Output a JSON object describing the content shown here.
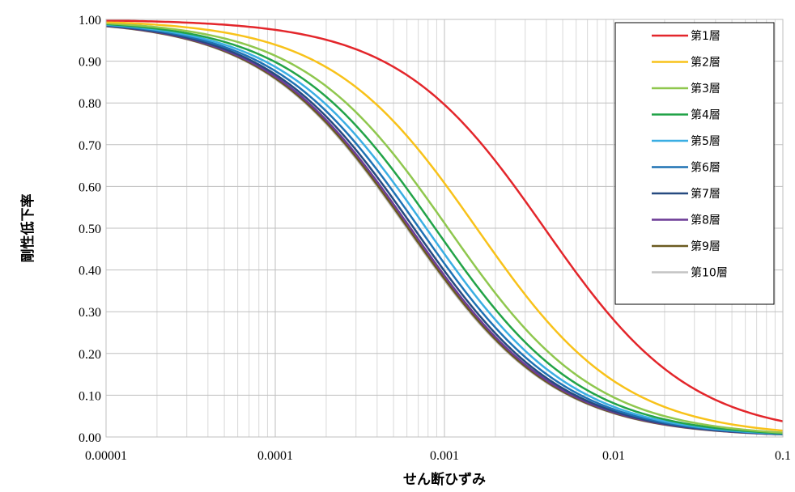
{
  "chart_data": {
    "type": "line",
    "xlabel": "せん断ひずみ",
    "ylabel": "剛性低下率",
    "xscale": "log",
    "xlim": [
      1e-05,
      0.1
    ],
    "ylim": [
      0,
      1.0
    ],
    "x_ticks": [
      "0.00001",
      "0.0001",
      "0.001",
      "0.01",
      "0.1"
    ],
    "y_ticks": [
      "0.00",
      "0.10",
      "0.20",
      "0.30",
      "0.40",
      "0.50",
      "0.60",
      "0.70",
      "0.80",
      "0.90",
      "1.00"
    ],
    "grid": true,
    "legend_position": "top-right",
    "curve_model": "G/G0 = 1 / (1 + gamma / gamma_ref)",
    "series": [
      {
        "name": "第1層",
        "color": "#e3262b",
        "gamma_ref": 0.0039
      },
      {
        "name": "第2層",
        "color": "#f8c21a",
        "gamma_ref": 0.00155
      },
      {
        "name": "第3層",
        "color": "#8fc74e",
        "gamma_ref": 0.00105
      },
      {
        "name": "第4層",
        "color": "#22a348",
        "gamma_ref": 0.00088
      },
      {
        "name": "第5層",
        "color": "#3aaee3",
        "gamma_ref": 0.00078
      },
      {
        "name": "第6層",
        "color": "#1e72b4",
        "gamma_ref": 0.00071
      },
      {
        "name": "第7層",
        "color": "#264a80",
        "gamma_ref": 0.00066
      },
      {
        "name": "第8層",
        "color": "#6c3b96",
        "gamma_ref": 0.00063
      },
      {
        "name": "第9層",
        "color": "#6b5a20",
        "gamma_ref": 0.00061
      },
      {
        "name": "第10層",
        "color": "#c3c3c3",
        "gamma_ref": 0.0006
      }
    ]
  }
}
